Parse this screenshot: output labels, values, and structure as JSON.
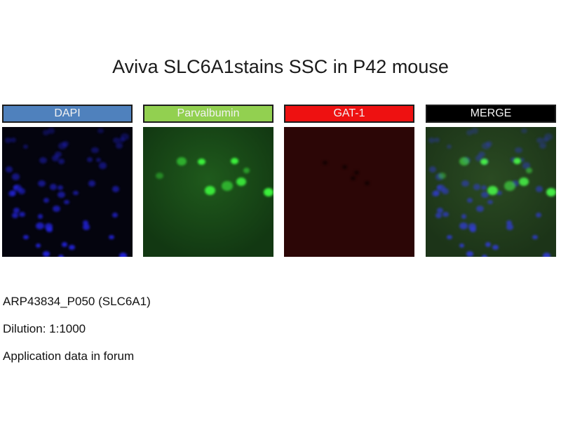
{
  "title": "Aviva SLC6A1stains SSC in P42 mouse",
  "panels": [
    {
      "label": "DAPI",
      "color": "#4f81bd"
    },
    {
      "label": "Parvalbumin",
      "color": "#92d050"
    },
    {
      "label": "GAT-1",
      "color": "#ff0000"
    },
    {
      "label": "MERGE",
      "color": "#000000"
    }
  ],
  "captions": [
    "ARP43834_P050 (SLC6A1)",
    "Dilution: 1:1000",
    "Application data in forum"
  ]
}
